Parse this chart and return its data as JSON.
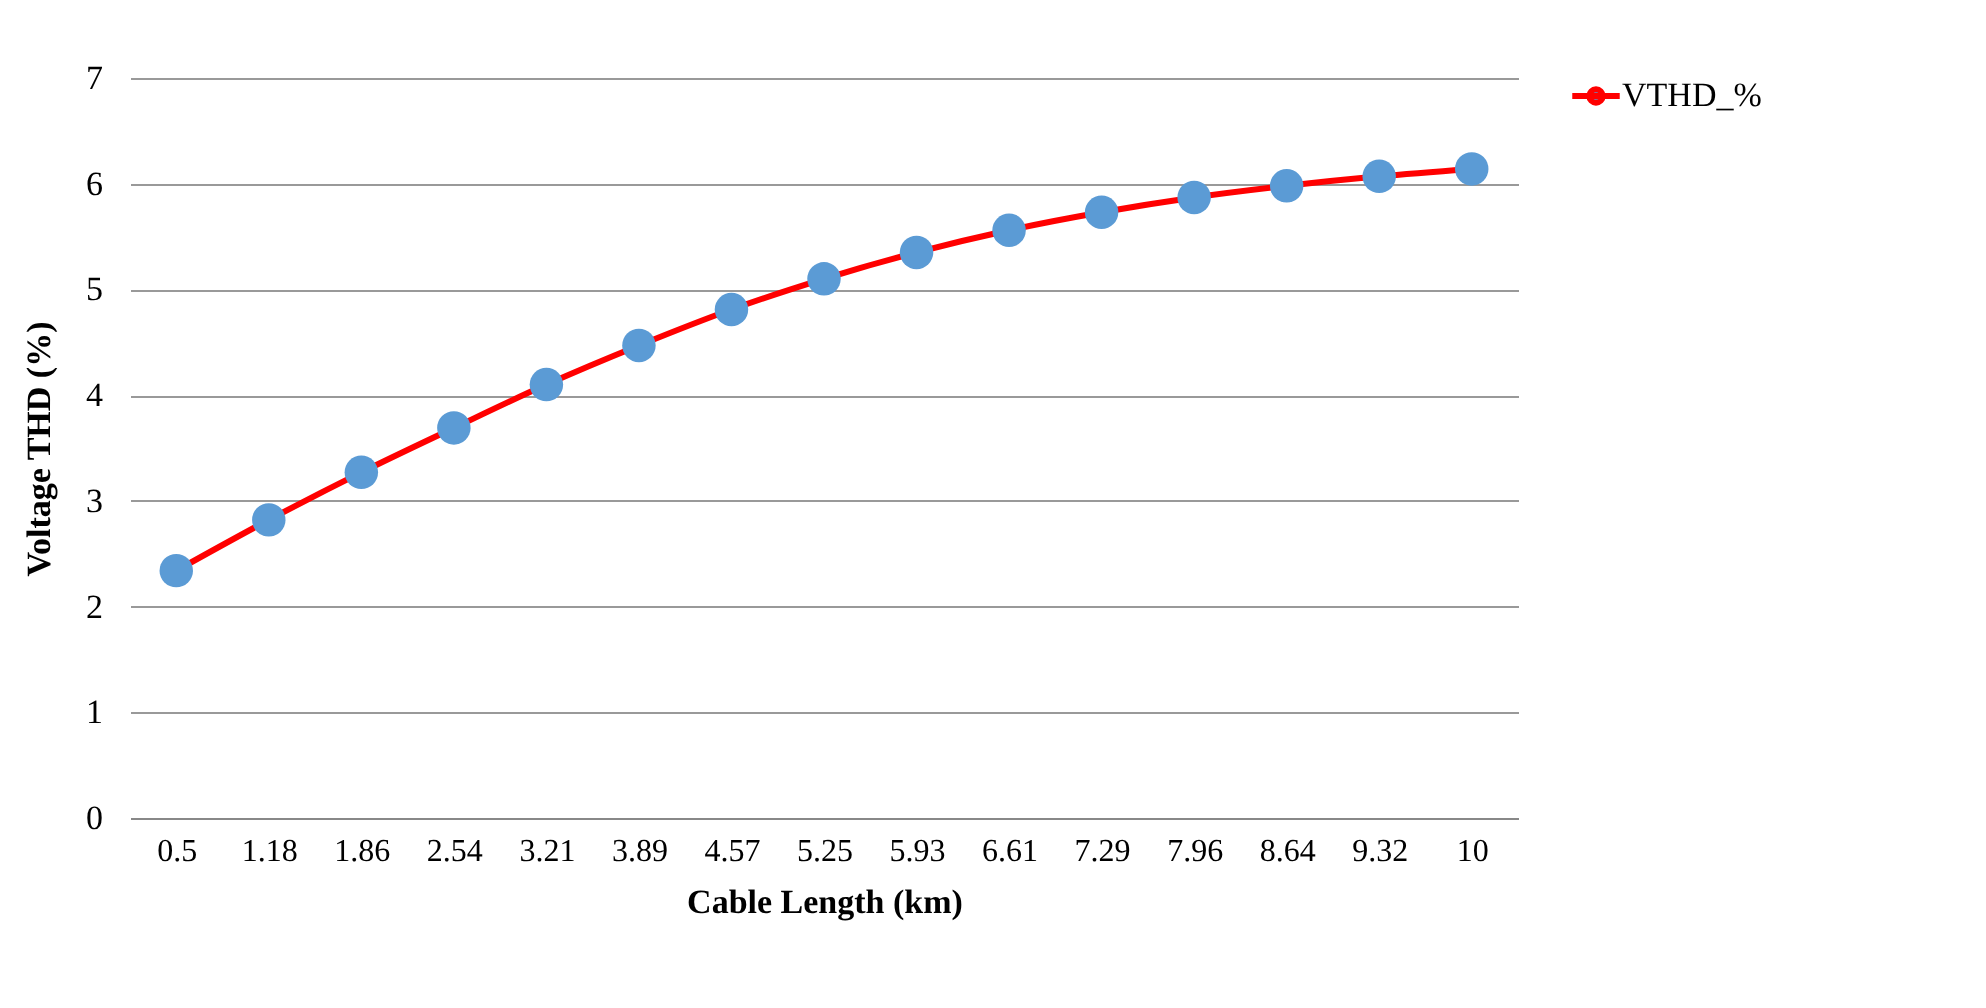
{
  "chart_data": {
    "type": "line",
    "xlabel": "Cable Length (km)",
    "ylabel": "Voltage THD (%)",
    "categories": [
      "0.5",
      "1.18",
      "1.86",
      "2.54",
      "3.21",
      "3.89",
      "4.57",
      "5.25",
      "5.93",
      "6.61",
      "7.29",
      "7.96",
      "8.64",
      "9.32",
      "10"
    ],
    "series": [
      {
        "name": "VTHD_%",
        "color": "#ff0000",
        "colors": [
          "#5b9bd5",
          "#5b9bd5",
          "#5b9bd5",
          "#5b9bd5",
          "#5b9bd5",
          "#5b9bd5",
          "#5b9bd5",
          "#5b9bd5",
          "#5b9bd5",
          "#5b9bd5",
          "#5b9bd5",
          "#5b9bd5",
          "#5b9bd5",
          "#5b9bd5",
          "#5b9bd5"
        ],
        "values": [
          2.34,
          2.82,
          3.27,
          3.69,
          4.1,
          4.47,
          4.81,
          5.1,
          5.35,
          5.56,
          5.73,
          5.87,
          5.98,
          6.07,
          6.14
        ]
      }
    ],
    "ylim": [
      0,
      7
    ],
    "yticks": [
      0,
      1,
      2,
      3,
      4,
      5,
      6,
      7
    ],
    "grid": "y",
    "legend": "right",
    "marker": "circle",
    "line_style": "solid"
  }
}
